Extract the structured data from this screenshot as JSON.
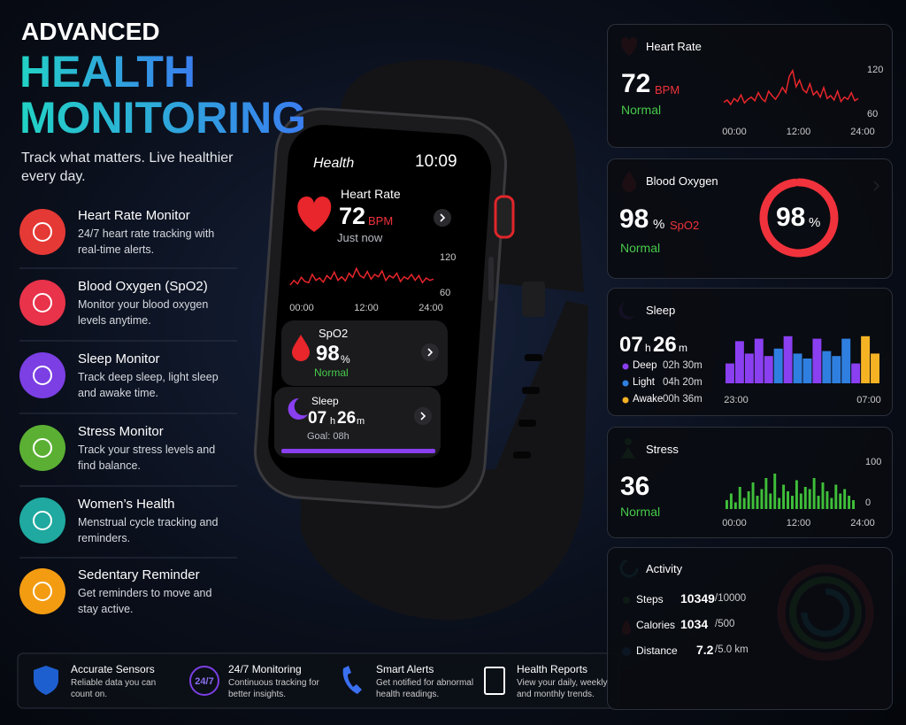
{
  "header": {
    "kicker": "ADVANCED",
    "title_1": "HEALTH",
    "title_2": "MONITORING",
    "subtitle": "Track what matters. Live healthier every day."
  },
  "features": [
    {
      "title": "Heart Rate Monitor",
      "desc": "24/7 heart rate tracking with real-time alerts.",
      "color": "#e53935"
    },
    {
      "title": "Blood Oxygen (SpO2)",
      "desc": "Monitor your blood oxygen levels anytime.",
      "color": "#e8334a"
    },
    {
      "title": "Sleep Monitor",
      "desc": "Track deep sleep, light sleep and awake time.",
      "color": "#7b3fe4"
    },
    {
      "title": "Stress Monitor",
      "desc": "Track your stress levels and find balance.",
      "color": "#5bb033"
    },
    {
      "title": "Women’s Health",
      "desc": "Menstrual cycle tracking and reminders.",
      "color": "#1fa9a0"
    },
    {
      "title": "Sedentary Reminder",
      "desc": "Get reminders to move and stay active.",
      "color": "#f39c12"
    }
  ],
  "watch": {
    "title": "Health",
    "time": "10:09",
    "heart": {
      "label": "Heart Rate",
      "value": 72,
      "unit": "BPM",
      "note": "Just now",
      "chart": {
        "values": [
          72,
          80,
          74,
          85,
          78,
          76,
          90,
          80,
          84,
          77,
          88,
          82,
          94,
          80,
          86,
          79,
          92,
          85,
          100,
          88,
          84,
          95,
          82,
          90,
          86,
          96,
          80,
          88,
          84,
          92,
          78,
          86,
          82,
          90,
          80,
          88,
          76,
          84,
          80,
          82
        ],
        "ylim": [
          60,
          120
        ],
        "yticks": [
          60,
          120
        ],
        "xlabels": [
          "00:00",
          "12:00",
          "24:00"
        ],
        "color": "#e8262b"
      }
    },
    "spo2": {
      "label": "SpO2",
      "value": 98,
      "unit": "%",
      "status": "Normal"
    },
    "sleep": {
      "label": "Sleep",
      "hours": "07",
      "h": "h",
      "minutes": "26",
      "m": "m",
      "goal": "Goal: 08h"
    }
  },
  "cards": {
    "heart_rate": {
      "title": "Heart Rate",
      "value": 72,
      "unit": "BPM",
      "status": "Normal",
      "chart": {
        "values": [
          75,
          78,
          72,
          80,
          76,
          85,
          74,
          79,
          82,
          77,
          88,
          80,
          76,
          90,
          84,
          79,
          86,
          95,
          88,
          110,
          118,
          96,
          105,
          92,
          88,
          100,
          85,
          90,
          82,
          95,
          80,
          84,
          78,
          90,
          76,
          82,
          79,
          88,
          77,
          80
        ],
        "ylim": [
          60,
          120
        ],
        "yticks": [
          60,
          120
        ],
        "xlabels": [
          "00:00",
          "12:00",
          "24:00"
        ],
        "color": "#e8262b"
      }
    },
    "blood_oxygen": {
      "title": "Blood Oxygen",
      "value": 98,
      "unit": "%",
      "label": "SpO2",
      "status": "Normal",
      "ring_value": 98,
      "ring_unit": "%",
      "color": "#f0323c"
    },
    "sleep": {
      "title": "Sleep",
      "hours": "07",
      "h": "h",
      "minutes": "26",
      "m": "m",
      "legend": [
        {
          "name": "Deep",
          "duration": "02h 30m",
          "color": "#8a3ff0"
        },
        {
          "name": "Light",
          "duration": "04h 20m",
          "color": "#2f7fe0"
        },
        {
          "name": "Awake",
          "duration": "00h 36m",
          "color": "#f5b324"
        }
      ],
      "chart": {
        "values": [
          40,
          85,
          60,
          90,
          55,
          70,
          95,
          60,
          50,
          90,
          65,
          55,
          90,
          40,
          95,
          60
        ],
        "colors": [
          "#8a3ff0",
          "#8a3ff0",
          "#8a3ff0",
          "#8a3ff0",
          "#8a3ff0",
          "#2f7fe0",
          "#8a3ff0",
          "#2f7fe0",
          "#2f7fe0",
          "#8a3ff0",
          "#2f7fe0",
          "#2f7fe0",
          "#2f7fe0",
          "#8a3ff0",
          "#f5b324",
          "#f5b324"
        ],
        "ylim": [
          0,
          100
        ],
        "xlabels": [
          "23:00",
          "07:00"
        ]
      }
    },
    "stress": {
      "title": "Stress",
      "value": 36,
      "status": "Normal",
      "chart": {
        "values": [
          20,
          35,
          15,
          50,
          25,
          40,
          60,
          30,
          45,
          70,
          35,
          80,
          25,
          55,
          40,
          30,
          65,
          35,
          50,
          45,
          70,
          30,
          60,
          40,
          25,
          55,
          35,
          45,
          30,
          20
        ],
        "ylim": [
          0,
          100
        ],
        "yticks": [
          0,
          100
        ],
        "xlabels": [
          "00:00",
          "12:00",
          "24:00"
        ],
        "color": "#3fbf3a"
      }
    },
    "activity": {
      "title": "Activity",
      "rows": [
        {
          "name": "Steps",
          "value": 10349,
          "goal": "/10000"
        },
        {
          "name": "Calories",
          "value": 1034,
          "goal": "/500"
        },
        {
          "name": "Distance",
          "value": 7.2,
          "goal": "/5.0 km"
        }
      ]
    }
  },
  "footer": [
    {
      "title": "Accurate Sensors",
      "desc": "Reliable data you can count on."
    },
    {
      "title": "24/7 Monitoring",
      "desc": "Continuous tracking for better insights.",
      "icon_text": "24/7"
    },
    {
      "title": "Smart Alerts",
      "desc": "Get notified for abnormal health readings."
    },
    {
      "title": "Health Reports",
      "desc": "View your daily, weekly and monthly trends."
    }
  ]
}
